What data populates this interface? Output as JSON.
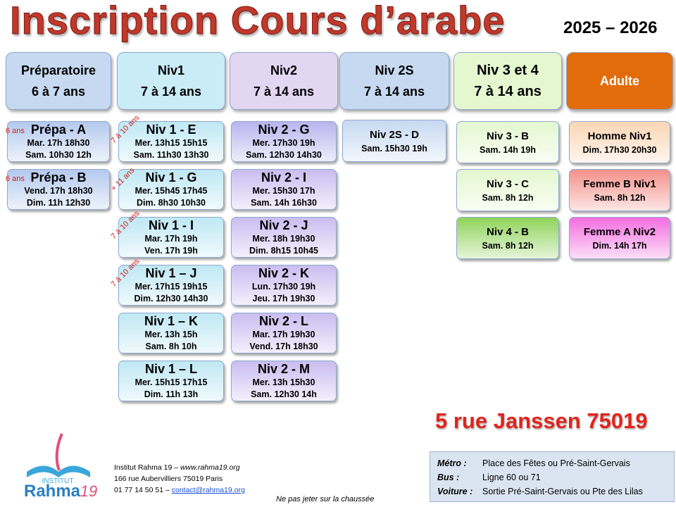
{
  "header": {
    "title": "Inscription Cours d’arabe",
    "year": "2025 – 2026"
  },
  "columns": [
    {
      "line1": "Préparatoire",
      "line2": "6 à 7 ans",
      "color": "#c6d9f1",
      "groups": [
        {
          "name": "Prépa - A",
          "note": "6 ans",
          "times": [
            "Mar. 17h 18h30",
            "Sam. 10h30 12h"
          ],
          "color": "#b4c9ee"
        },
        {
          "name": "Prépa - B",
          "note": "6 ans",
          "times": [
            "Vend. 17h 18h30",
            "Dim. 11h 12h30"
          ],
          "color": "#b4c9ee"
        }
      ]
    },
    {
      "line1": "Niv1",
      "line2": "7 à 14 ans",
      "color": "#c9ecf6",
      "groups": [
        {
          "name": "Niv 1 - E",
          "note": "7 à 10 ans",
          "times": [
            "Mer. 13h15 15h15",
            "Sam. 11h30 13h30"
          ],
          "color": "#bfe8f4"
        },
        {
          "name": "Niv 1 - G",
          "note": "+ 11 ans",
          "times": [
            "Mer. 15h45 17h45",
            "Dim. 8h30 10h30"
          ],
          "color": "#bfe8f4"
        },
        {
          "name": "Niv 1 - I",
          "note": "7 à 10 ans",
          "times": [
            "Mar. 17h 19h",
            "Ven. 17h 19h"
          ],
          "color": "#bfe8f4"
        },
        {
          "name": "Niv 1 – J",
          "note": "7 à 10 ans",
          "times": [
            "Mer. 17h15 19h15",
            "Dim. 12h30 14h30"
          ],
          "color": "#bfe8f4"
        },
        {
          "name": "Niv 1 – K",
          "times": [
            "Mer. 13h 15h",
            "Sam. 8h 10h"
          ],
          "color": "#bfe8f4"
        },
        {
          "name": "Niv 1 – L",
          "times": [
            "Mer. 15h15 17h15",
            "Dim. 11h 13h"
          ],
          "color": "#bfe8f4"
        }
      ]
    },
    {
      "line1": "Niv2",
      "line2": "7 à 14 ans",
      "color": "#e3d6f3",
      "groups": [
        {
          "name": "Niv 2 - G",
          "times": [
            "Mer. 17h30 19h",
            "Sam. 12h30 14h30"
          ],
          "color": "#b8b4ee"
        },
        {
          "name": "Niv 2 - I",
          "times": [
            "Mer. 15h30 17h",
            "Sam. 14h 16h30"
          ],
          "color": "#c9bdf0"
        },
        {
          "name": "Niv 2 - J",
          "times": [
            "Mer. 18h 19h30",
            "Dim. 8h15 10h45"
          ],
          "color": "#c9bdf0"
        },
        {
          "name": "Niv 2 - K",
          "times": [
            "Lun. 17h30 19h",
            "Jeu. 17h 19h30"
          ],
          "color": "#c9bdf0"
        },
        {
          "name": "Niv 2 - L",
          "times": [
            "Mar. 17h 19h30",
            "Vend. 17h 18h30"
          ],
          "color": "#c9bdf0"
        },
        {
          "name": "Niv 2 - M",
          "times": [
            "Mer. 13h 15h30",
            "Sam. 12h30 14h"
          ],
          "color": "#c9bdf0"
        }
      ]
    },
    {
      "line1": "Niv 2S",
      "line2": "7 à 14 ans",
      "color": "#c6d9f1",
      "groups": [
        {
          "name": "Niv 2S - D",
          "times": [
            "Sam. 15h30 19h"
          ],
          "color": "#c6d9f1"
        }
      ]
    },
    {
      "line1": "Niv 3 et 4",
      "line2": "7 à 14 ans",
      "color": "#e4f7cf",
      "groups": [
        {
          "name": "Niv 3 - B",
          "times": [
            "Sam. 14h 19h"
          ],
          "color": "#e4f7cf"
        },
        {
          "name": "Niv 3 - C",
          "times": [
            "Sam. 8h 12h"
          ],
          "color": "#e4f7cf"
        },
        {
          "name": "Niv 4 - B",
          "times": [
            "Sam. 8h 12h"
          ],
          "color": "#8fd35a"
        }
      ]
    },
    {
      "line1": "Adulte",
      "color": "#e36c0a",
      "groups": [
        {
          "name": "Homme Niv1",
          "times": [
            "Dim. 17h30 20h30"
          ],
          "color": "#fbd5b5"
        },
        {
          "name": "Femme B Niv1",
          "times": [
            "Sam. 8h 12h"
          ],
          "color": "#f4918a"
        },
        {
          "name": "Femme A Niv2",
          "times": [
            "Dim. 14h 17h"
          ],
          "color": "#f36ee0"
        }
      ]
    }
  ],
  "address": "5 rue Janssen 75019",
  "logo": {
    "top": "INSTITUT",
    "name": "Rahma",
    "num": "19"
  },
  "institute": {
    "name": "Institut Rahma 19 – ",
    "web": "www.rahma19.org",
    "street": "166 rue Aubervilliers 75019 Paris",
    "phone": "01 77 14 50 51 – ",
    "email": "contact@rahma19.org"
  },
  "transport": [
    {
      "label": "Métro :",
      "value": "Place des Fêtes ou Pré-Saint-Gervais"
    },
    {
      "label": "Bus :",
      "value": "Ligne 60 ou 71"
    },
    {
      "label": "Voiture :",
      "value": "Sortie Pré-Saint-Gervais ou Pte des Lilas"
    }
  ],
  "footer": "Ne pas jeter sur la chaussée"
}
